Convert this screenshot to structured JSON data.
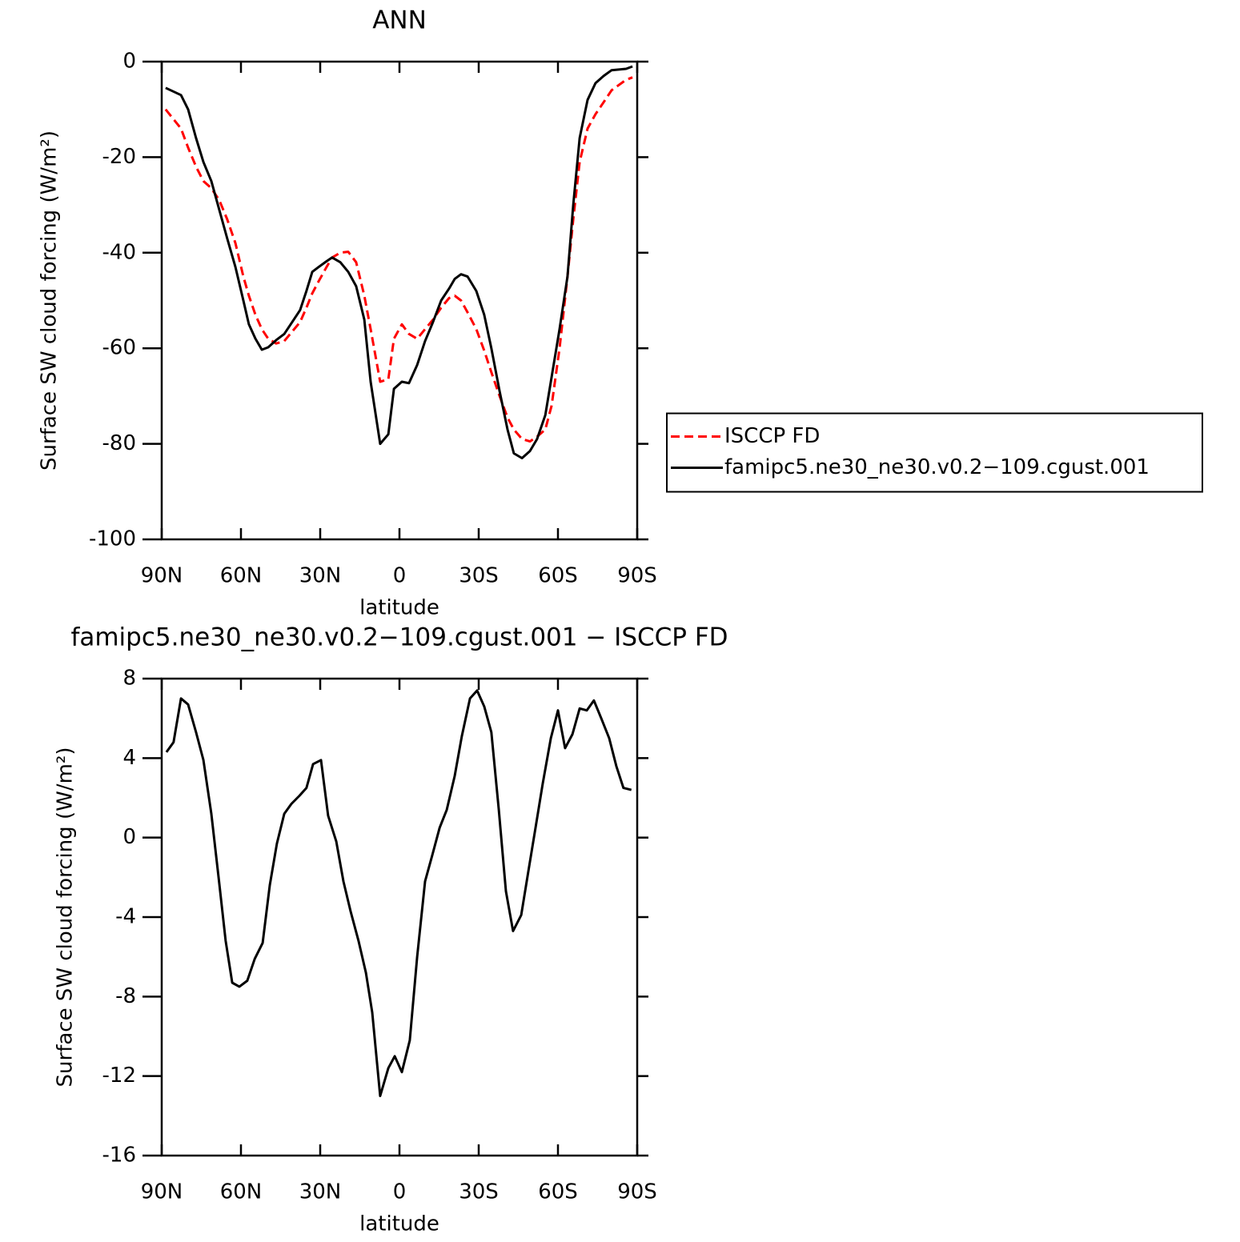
{
  "chart_data": [
    {
      "type": "line",
      "title": "ANN",
      "xlabel": "latitude",
      "ylabel": "Surface SW cloud forcing (W/m²)",
      "x": [
        88.5,
        82.7,
        80,
        77,
        74.2,
        71.2,
        68.2,
        65.2,
        62.1,
        59.1,
        57,
        54.5,
        52.1,
        49.7,
        46.7,
        43.6,
        40.6,
        37.6,
        35.2,
        33,
        30.6,
        27.6,
        25.5,
        22.4,
        19.4,
        16.4,
        13.3,
        10.9,
        7.3,
        4.2,
        2.1,
        -0.9,
        -3.6,
        -6.7,
        -9.7,
        -12.7,
        -15.8,
        -18.8,
        -20.9,
        -23.3,
        -25.8,
        -29.1,
        -32.1,
        -34.8,
        -37.9,
        -40.9,
        -43.3,
        -46.4,
        -49.4,
        -52.1,
        -55.2,
        -57.6,
        -60.6,
        -63.6,
        -65.8,
        -68.2,
        -71.2,
        -74.2,
        -77.3,
        -80.3,
        -85.8,
        -88.2
      ],
      "series": [
        {
          "name": "ISCCP FD",
          "color": "#ff0000",
          "style": "dashed",
          "values": [
            -10,
            -14,
            -18,
            -22,
            -25,
            -26.5,
            -29,
            -33,
            -38,
            -45,
            -49,
            -53,
            -56,
            -58,
            -59,
            -58.5,
            -56.5,
            -54.5,
            -51.5,
            -48.5,
            -46,
            -43,
            -41,
            -40,
            -39.8,
            -42,
            -49,
            -56,
            -67,
            -66.5,
            -58,
            -55,
            -57,
            -58,
            -56,
            -54,
            -51.5,
            -49.5,
            -49,
            -50,
            -52.5,
            -56,
            -60.5,
            -65,
            -70,
            -74.5,
            -77,
            -79,
            -79.5,
            -78.5,
            -77,
            -72,
            -60,
            -45,
            -33,
            -21,
            -14,
            -11,
            -8.5,
            -6,
            -3.8,
            -3.3
          ]
        },
        {
          "name": "famipc5.ne30_ne30.v0.2−109.cgust.001",
          "color": "#000000",
          "style": "solid",
          "values": [
            -5.5,
            -7,
            -10,
            -16,
            -21,
            -25,
            -31,
            -37,
            -43,
            -50,
            -55,
            -58,
            -60.3,
            -59.8,
            -58.3,
            -57,
            -54.5,
            -52,
            -48,
            -44,
            -43,
            -41.8,
            -41,
            -42,
            -44,
            -47,
            -54,
            -67,
            -80,
            -78,
            -68.5,
            -67,
            -67.3,
            -63.5,
            -58.5,
            -54.5,
            -50,
            -47.5,
            -45.5,
            -44.5,
            -45,
            -48,
            -53,
            -60,
            -69,
            -77,
            -82,
            -83,
            -81.5,
            -79,
            -74,
            -66,
            -56,
            -45,
            -30,
            -16,
            -8,
            -4.5,
            -3,
            -1.8,
            -1.5,
            -1
          ]
        }
      ],
      "xlim": [
        90,
        -90
      ],
      "xticks": [
        {
          "value": 90,
          "label": "90N"
        },
        {
          "value": 60,
          "label": "60N"
        },
        {
          "value": 30,
          "label": "30N"
        },
        0,
        {
          "value": -30,
          "label": "30S"
        },
        {
          "value": -60,
          "label": "60S"
        },
        {
          "value": -90,
          "label": "90S"
        }
      ],
      "ylim": [
        -100,
        0
      ],
      "yticks": [
        -100,
        -80,
        -60,
        -40,
        -20,
        0
      ],
      "legend": "right"
    },
    {
      "type": "line",
      "title": "famipc5.ne30_ne30.v0.2−109.cgust.001 − ISCCP FD",
      "xlabel": "latitude",
      "ylabel": "Surface SW cloud forcing (W/m²)",
      "x": [
        88.2,
        85.5,
        82.7,
        80,
        77,
        74.2,
        71.2,
        68.2,
        65.8,
        63.3,
        60.6,
        57.6,
        54.8,
        51.8,
        49.1,
        46.4,
        43.6,
        40.9,
        37.9,
        35.2,
        32.7,
        29.7,
        27,
        23.9,
        21.2,
        18.5,
        15.5,
        12.7,
        10.3,
        7.3,
        4.2,
        1.8,
        -0.9,
        -3.9,
        -6.7,
        -9.7,
        -12.4,
        -15.2,
        -17.9,
        -20.9,
        -23.6,
        -26.7,
        -29.4,
        -32.1,
        -34.8,
        -37.6,
        -40.3,
        -43,
        -46.1,
        -48.8,
        -51.5,
        -54.2,
        -57.3,
        -60,
        -62.7,
        -65.5,
        -68.2,
        -70.9,
        -73.6,
        -76.4,
        -79.4,
        -82.1,
        -84.8,
        -87.8
      ],
      "values": [
        4.3,
        4.8,
        7,
        6.7,
        5.3,
        3.9,
        1.2,
        -2.3,
        -5.2,
        -7.3,
        -7.5,
        -7.2,
        -6.1,
        -5.3,
        -2.4,
        -0.3,
        1.2,
        1.7,
        2.1,
        2.5,
        3.7,
        3.9,
        1.1,
        -0.2,
        -2.2,
        -3.7,
        -5.2,
        -6.8,
        -8.8,
        -13,
        -11.6,
        -11,
        -11.8,
        -10.2,
        -6,
        -2.2,
        -0.9,
        0.5,
        1.4,
        3.1,
        5.1,
        7,
        7.4,
        6.6,
        5.3,
        1.4,
        -2.7,
        -4.7,
        -3.9,
        -1.7,
        0.5,
        2.7,
        5,
        6.4,
        4.5,
        5.2,
        6.5,
        6.4,
        6.9,
        6,
        5,
        3.6,
        2.5,
        2.4
      ],
      "color": "#000000",
      "xlim": [
        90,
        -90
      ],
      "xticks": [
        {
          "value": 90,
          "label": "90N"
        },
        {
          "value": 60,
          "label": "60N"
        },
        {
          "value": 30,
          "label": "30N"
        },
        0,
        {
          "value": -30,
          "label": "30S"
        },
        {
          "value": -60,
          "label": "60S"
        },
        {
          "value": -90,
          "label": "90S"
        }
      ],
      "ylim": [
        -16,
        8
      ],
      "yticks": [
        -16,
        -12,
        -8,
        -4,
        0,
        4,
        8
      ]
    }
  ]
}
